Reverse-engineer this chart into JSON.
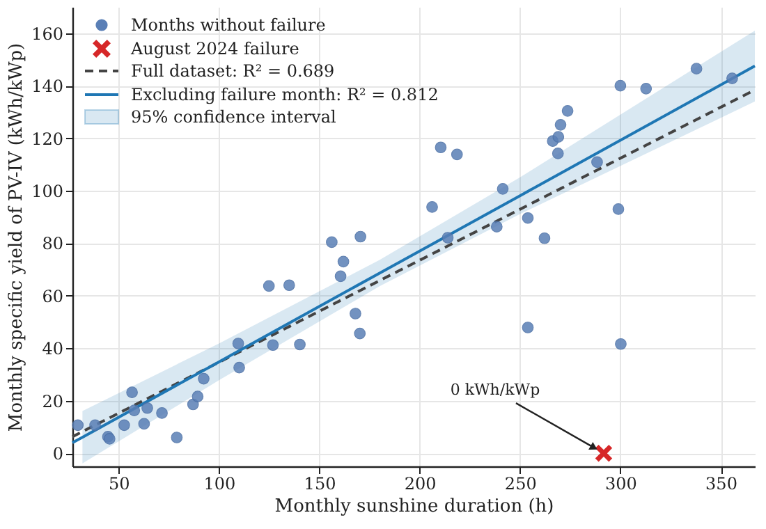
{
  "chart_data": {
    "type": "scatter",
    "xlabel": "Monthly sunshine duration (h)",
    "ylabel": "Monthly specific yield of PV-IV (kWh/kWp)",
    "xlim": [
      27,
      367
    ],
    "xticks": [
      50,
      100,
      150,
      200,
      250,
      300,
      350
    ],
    "ylim": [
      -5,
      170
    ],
    "yticks": [
      0,
      20,
      40,
      60,
      80,
      100,
      120,
      140,
      160
    ],
    "grid": true,
    "legend": "top left",
    "annotations": [
      {
        "text": "0 kWh/kWp",
        "x": 291.7,
        "y": 0
      },
      "95% confidence interval"
    ],
    "series": [
      {
        "name": "Months without failure",
        "marker": "circle",
        "color": "#5a7fb6",
        "x": [
          29.7,
          38.3,
          44.7,
          45.5,
          52.8,
          56.7,
          57.8,
          62.7,
          64.3,
          71.6,
          79,
          87.1,
          89.4,
          92.4,
          109.6,
          110.1,
          124.9,
          126.9,
          135,
          140.3,
          160.6,
          162,
          168,
          170.2,
          156.2,
          170.5,
          210.5,
          218.6,
          206.2,
          214,
          241.4,
          238.4,
          253.9,
          262.2,
          266.3,
          269.1,
          270.2,
          273.7,
          268.9,
          288.4,
          300,
          299,
          312.8,
          337.9,
          355.7,
          253.9,
          300.2
        ],
        "values": [
          10.7,
          10.7,
          6.3,
          5.5,
          10.7,
          23.2,
          16.3,
          11.2,
          17.2,
          15.3,
          6,
          18.6,
          21.6,
          28.4,
          41.8,
          32.6,
          63.7,
          41.2,
          64,
          41.4,
          67.4,
          73,
          53.2,
          45.6,
          80.4,
          82.5,
          116.5,
          113.8,
          93.8,
          82.1,
          100.7,
          86.3,
          89.6,
          81.9,
          118.9,
          120.5,
          125.1,
          130.4,
          114.2,
          110.9,
          140,
          93,
          138.9,
          146.5,
          142.8,
          47.9,
          41.6
        ]
      },
      {
        "name": "August 2024 failure",
        "type": "scatter",
        "marker": "cross",
        "color": "#d62728",
        "x": [
          291.7
        ],
        "values": [
          0
        ]
      },
      {
        "name": "Full dataset: R² = 0.689",
        "type": "line",
        "line_style": "dashed",
        "color": "#444444",
        "x": [
          27,
          367
        ],
        "values": [
          6.3,
          138.4
        ]
      },
      {
        "name": "Excluding failure month: R² = 0.812",
        "type": "line",
        "line_style": "solid",
        "color": "#1f77b4",
        "x": [
          27,
          32,
          100,
          180,
          250,
          367
        ],
        "values": [
          4,
          6.1,
          34.8,
          68.6,
          98.1,
          147.5
        ],
        "lower": [
          null,
          -3.9,
          27.8,
          63.6,
          91.1,
          134
        ],
        "upper": [
          null,
          16.1,
          41.8,
          73.6,
          105.1,
          161
        ]
      }
    ]
  }
}
